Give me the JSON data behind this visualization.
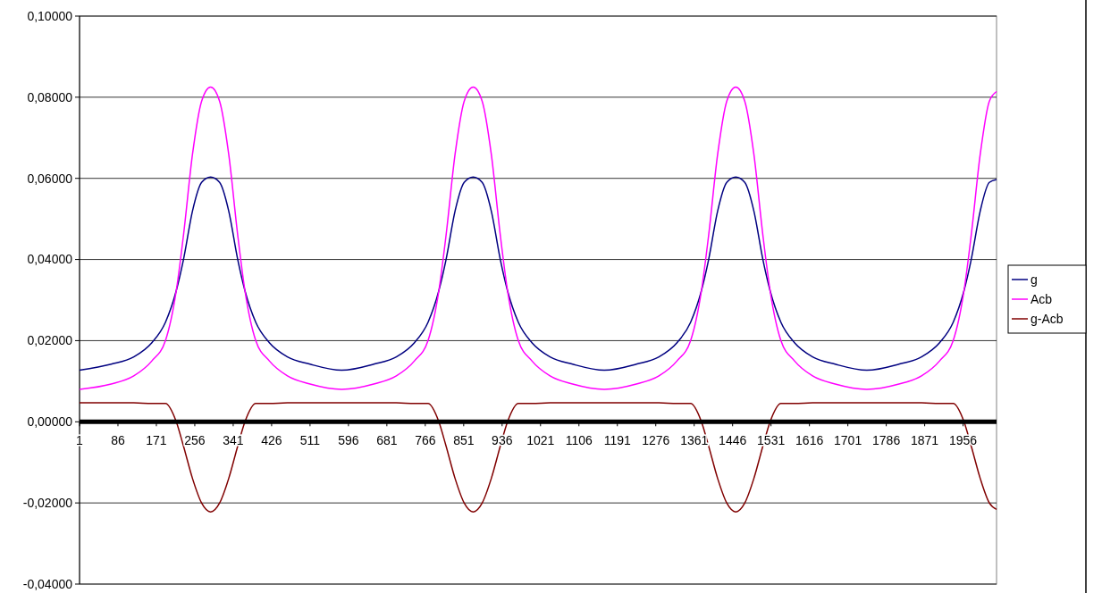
{
  "chart_data": {
    "type": "line",
    "x": [
      1,
      71,
      121,
      161,
      191,
      215,
      231,
      251,
      271,
      291,
      311,
      331,
      351,
      367,
      391,
      421,
      461,
      511,
      581,
      652,
      702,
      742,
      772,
      796,
      812,
      832,
      852,
      872,
      892,
      912,
      932,
      948,
      972,
      1002,
      1042,
      1092,
      1162,
      1233,
      1283,
      1323,
      1353,
      1377,
      1393,
      1413,
      1433,
      1453,
      1473,
      1493,
      1513,
      1529,
      1553,
      1583,
      1623,
      1673,
      1743,
      1814,
      1864,
      1904,
      1934,
      1958,
      1974,
      1994,
      2014,
      2030
    ],
    "series": [
      {
        "name": "g",
        "color": "#000080",
        "values": [
          0.0127,
          0.0142,
          0.016,
          0.0195,
          0.0245,
          0.0323,
          0.04,
          0.052,
          0.059,
          0.0603,
          0.059,
          0.052,
          0.04,
          0.0323,
          0.0245,
          0.0195,
          0.016,
          0.0142,
          0.0127,
          0.0142,
          0.016,
          0.0195,
          0.0245,
          0.0323,
          0.04,
          0.052,
          0.059,
          0.0603,
          0.059,
          0.052,
          0.04,
          0.0323,
          0.0245,
          0.0195,
          0.016,
          0.0142,
          0.0127,
          0.0142,
          0.016,
          0.0195,
          0.0245,
          0.0323,
          0.04,
          0.052,
          0.059,
          0.0603,
          0.059,
          0.052,
          0.04,
          0.0323,
          0.0245,
          0.0195,
          0.016,
          0.0142,
          0.0127,
          0.0142,
          0.016,
          0.0195,
          0.0245,
          0.0323,
          0.04,
          0.052,
          0.059,
          0.0597
        ]
      },
      {
        "name": "Acb",
        "color": "#ff00ff",
        "values": [
          0.008,
          0.0093,
          0.0113,
          0.015,
          0.02,
          0.0323,
          0.046,
          0.066,
          0.079,
          0.0825,
          0.079,
          0.066,
          0.046,
          0.0323,
          0.02,
          0.015,
          0.0113,
          0.0093,
          0.008,
          0.0093,
          0.0113,
          0.015,
          0.02,
          0.0323,
          0.046,
          0.066,
          0.079,
          0.0825,
          0.079,
          0.066,
          0.046,
          0.0323,
          0.02,
          0.015,
          0.0113,
          0.0093,
          0.008,
          0.0093,
          0.0113,
          0.015,
          0.02,
          0.0323,
          0.046,
          0.066,
          0.079,
          0.0825,
          0.079,
          0.066,
          0.046,
          0.0323,
          0.02,
          0.015,
          0.0113,
          0.0093,
          0.008,
          0.0093,
          0.0113,
          0.015,
          0.02,
          0.0323,
          0.046,
          0.066,
          0.079,
          0.0814
        ]
      },
      {
        "name": "g-Acb",
        "color": "#800000",
        "values": [
          0.0047,
          0.0047,
          0.0047,
          0.0045,
          0.0045,
          0,
          -0.006,
          -0.014,
          -0.02,
          -0.0222,
          -0.02,
          -0.014,
          -0.006,
          0,
          0.0045,
          0.0045,
          0.0047,
          0.0047,
          0.0047,
          0.0047,
          0.0047,
          0.0045,
          0.0045,
          0,
          -0.006,
          -0.014,
          -0.02,
          -0.0222,
          -0.02,
          -0.014,
          -0.006,
          0,
          0.0045,
          0.0045,
          0.0047,
          0.0047,
          0.0047,
          0.0047,
          0.0047,
          0.0045,
          0.0045,
          0,
          -0.006,
          -0.014,
          -0.02,
          -0.0222,
          -0.02,
          -0.014,
          -0.006,
          0,
          0.0045,
          0.0045,
          0.0047,
          0.0047,
          0.0047,
          0.0047,
          0.0047,
          0.0045,
          0.0045,
          0,
          -0.006,
          -0.014,
          -0.02,
          -0.0216
        ]
      }
    ],
    "xlim": [
      1,
      2030
    ],
    "xticks": [
      1,
      86,
      171,
      256,
      341,
      426,
      511,
      596,
      681,
      766,
      851,
      936,
      1021,
      1106,
      1191,
      1276,
      1361,
      1446,
      1531,
      1616,
      1701,
      1786,
      1871,
      1956
    ],
    "ylim": [
      -0.04,
      0.1
    ],
    "yticks": [
      {
        "value": -0.04,
        "label": "-0,04000"
      },
      {
        "value": -0.02,
        "label": "-0,02000"
      },
      {
        "value": 0,
        "label": "0,00000"
      },
      {
        "value": 0.02,
        "label": "0,02000"
      },
      {
        "value": 0.04,
        "label": "0,04000"
      },
      {
        "value": 0.06,
        "label": "0,06000"
      },
      {
        "value": 0.08,
        "label": "0,08000"
      },
      {
        "value": 0.1,
        "label": "0,10000"
      }
    ],
    "grid": "y",
    "legend": "right",
    "line_style": "solid"
  }
}
